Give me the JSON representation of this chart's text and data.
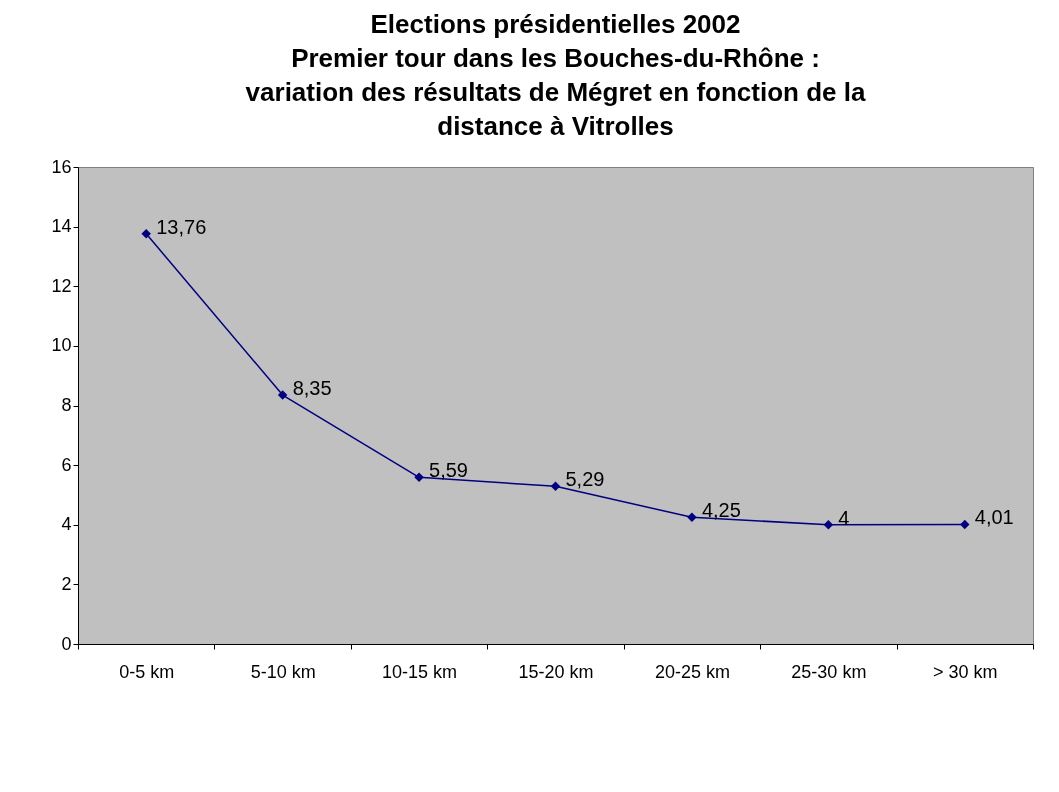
{
  "chart_data": {
    "type": "line",
    "title": [
      "Elections présidentielles 2002",
      "Premier tour dans les Bouches-du-Rhône :",
      "variation des résultats de Mégret en fonction de la",
      "distance à Vitrolles"
    ],
    "categories": [
      "0-5 km",
      "5-10 km",
      "10-15 km",
      "15-20 km",
      "20-25 km",
      "25-30 km",
      "> 30 km"
    ],
    "series": [
      {
        "color": "#000080",
        "values": [
          13.76,
          8.35,
          5.59,
          5.29,
          4.25,
          4,
          4.01
        ],
        "value_labels": [
          "13,76",
          "8,35",
          "5,59",
          "5,29",
          "4,25",
          "4",
          "4,01"
        ]
      }
    ],
    "ylim": [
      0,
      16
    ],
    "yticks": [
      0,
      2,
      4,
      6,
      8,
      10,
      12,
      14,
      16
    ],
    "marker": "diamond",
    "grid": false
  }
}
